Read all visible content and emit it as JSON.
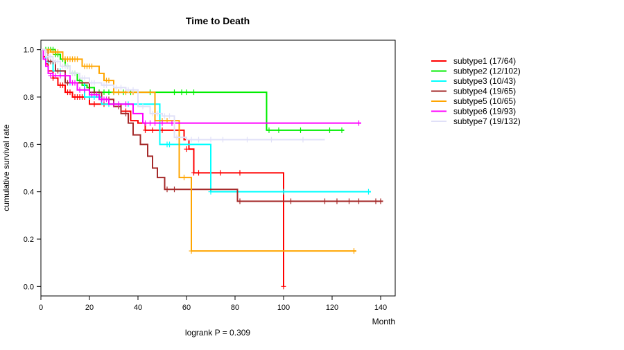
{
  "chart_data": {
    "type": "line",
    "title": "Time to Death",
    "xlabel": "Month",
    "ylabel": "cumulative survival rate",
    "footnote": "logrank P = 0.309",
    "xlim": [
      0,
      146
    ],
    "ylim": [
      -0.04,
      1.04
    ],
    "xticks": [
      0,
      20,
      40,
      60,
      80,
      100,
      120,
      140
    ],
    "yticks": [
      0.0,
      0.2,
      0.4,
      0.6,
      0.8,
      1.0
    ],
    "grid": false,
    "legend_position": "right",
    "series": [
      {
        "name": "subtype1 (17/64)",
        "color": "#ff0000",
        "steps": [
          [
            0,
            1.0
          ],
          [
            1,
            0.97
          ],
          [
            2,
            0.94
          ],
          [
            3,
            0.91
          ],
          [
            5,
            0.88
          ],
          [
            7,
            0.85
          ],
          [
            10,
            0.82
          ],
          [
            13,
            0.8
          ],
          [
            20,
            0.77
          ],
          [
            33,
            0.74
          ],
          [
            37,
            0.7
          ],
          [
            40,
            0.69
          ],
          [
            43,
            0.66
          ],
          [
            59,
            0.62
          ],
          [
            61,
            0.58
          ],
          [
            63,
            0.48
          ],
          [
            100,
            0.0
          ]
        ],
        "end": 100,
        "censored": [
          [
            5,
            0.88
          ],
          [
            8,
            0.85
          ],
          [
            9,
            0.85
          ],
          [
            11,
            0.82
          ],
          [
            12,
            0.82
          ],
          [
            14,
            0.8
          ],
          [
            15,
            0.8
          ],
          [
            16,
            0.8
          ],
          [
            17,
            0.8
          ],
          [
            18,
            0.8
          ],
          [
            22,
            0.77
          ],
          [
            26,
            0.77
          ],
          [
            30,
            0.77
          ],
          [
            35,
            0.74
          ],
          [
            43,
            0.66
          ],
          [
            46,
            0.66
          ],
          [
            50,
            0.66
          ],
          [
            60,
            0.58
          ],
          [
            63,
            0.48
          ],
          [
            65,
            0.48
          ],
          [
            74,
            0.48
          ],
          [
            82,
            0.48
          ],
          [
            100,
            0.0
          ]
        ]
      },
      {
        "name": "subtype2 (12/102)",
        "color": "#00ee00",
        "steps": [
          [
            0,
            1.0
          ],
          [
            6,
            0.98
          ],
          [
            8,
            0.96
          ],
          [
            10,
            0.93
          ],
          [
            12,
            0.9
          ],
          [
            15,
            0.87
          ],
          [
            17,
            0.85
          ],
          [
            19,
            0.84
          ],
          [
            22,
            0.82
          ],
          [
            93,
            0.66
          ]
        ],
        "end": 125,
        "censored": [
          [
            2,
            1.0
          ],
          [
            3,
            1.0
          ],
          [
            4,
            1.0
          ],
          [
            5,
            1.0
          ],
          [
            6,
            0.98
          ],
          [
            7,
            0.98
          ],
          [
            9,
            0.96
          ],
          [
            11,
            0.93
          ],
          [
            13,
            0.9
          ],
          [
            14,
            0.9
          ],
          [
            16,
            0.87
          ],
          [
            18,
            0.85
          ],
          [
            20,
            0.84
          ],
          [
            24,
            0.82
          ],
          [
            26,
            0.82
          ],
          [
            28,
            0.82
          ],
          [
            30,
            0.82
          ],
          [
            32,
            0.82
          ],
          [
            34,
            0.82
          ],
          [
            37,
            0.82
          ],
          [
            40,
            0.82
          ],
          [
            45,
            0.82
          ],
          [
            55,
            0.82
          ],
          [
            58,
            0.82
          ],
          [
            60,
            0.82
          ],
          [
            63,
            0.82
          ],
          [
            94,
            0.66
          ],
          [
            98,
            0.66
          ],
          [
            107,
            0.66
          ],
          [
            119,
            0.66
          ],
          [
            124,
            0.66
          ]
        ]
      },
      {
        "name": "subtype3 (10/43)",
        "color": "#00ffff",
        "steps": [
          [
            0,
            1.0
          ],
          [
            2,
            0.95
          ],
          [
            5,
            0.91
          ],
          [
            10,
            0.86
          ],
          [
            18,
            0.8
          ],
          [
            25,
            0.77
          ],
          [
            49,
            0.6
          ],
          [
            70,
            0.4
          ]
        ],
        "end": 136,
        "censored": [
          [
            3,
            0.95
          ],
          [
            8,
            0.91
          ],
          [
            12,
            0.86
          ],
          [
            20,
            0.8
          ],
          [
            22,
            0.8
          ],
          [
            28,
            0.77
          ],
          [
            30,
            0.77
          ],
          [
            36,
            0.77
          ],
          [
            52,
            0.6
          ],
          [
            53,
            0.6
          ],
          [
            70,
            0.4
          ],
          [
            100,
            0.4
          ],
          [
            135,
            0.4
          ]
        ]
      },
      {
        "name": "subtype4 (19/65)",
        "color": "#a52a2a",
        "steps": [
          [
            0,
            1.0
          ],
          [
            3,
            0.95
          ],
          [
            6,
            0.91
          ],
          [
            10,
            0.86
          ],
          [
            20,
            0.82
          ],
          [
            25,
            0.79
          ],
          [
            30,
            0.76
          ],
          [
            33,
            0.73
          ],
          [
            36,
            0.69
          ],
          [
            38,
            0.64
          ],
          [
            41,
            0.6
          ],
          [
            44,
            0.55
          ],
          [
            46,
            0.5
          ],
          [
            48,
            0.46
          ],
          [
            51,
            0.41
          ],
          [
            81,
            0.36
          ]
        ],
        "end": 141,
        "censored": [
          [
            4,
            0.95
          ],
          [
            5,
            0.95
          ],
          [
            7,
            0.91
          ],
          [
            11,
            0.86
          ],
          [
            13,
            0.86
          ],
          [
            22,
            0.82
          ],
          [
            28,
            0.79
          ],
          [
            32,
            0.76
          ],
          [
            35,
            0.73
          ],
          [
            52,
            0.41
          ],
          [
            55,
            0.41
          ],
          [
            82,
            0.36
          ],
          [
            103,
            0.36
          ],
          [
            117,
            0.36
          ],
          [
            122,
            0.36
          ],
          [
            127,
            0.36
          ],
          [
            131,
            0.36
          ],
          [
            138,
            0.36
          ],
          [
            140,
            0.36
          ]
        ]
      },
      {
        "name": "subtype5 (10/65)",
        "color": "#ffa500",
        "steps": [
          [
            0,
            1.0
          ],
          [
            4,
            0.99
          ],
          [
            9,
            0.96
          ],
          [
            17,
            0.93
          ],
          [
            24,
            0.9
          ],
          [
            26,
            0.87
          ],
          [
            30,
            0.82
          ],
          [
            47,
            0.7
          ],
          [
            57,
            0.46
          ],
          [
            62,
            0.15
          ]
        ],
        "end": 130,
        "censored": [
          [
            3,
            0.99
          ],
          [
            5,
            0.99
          ],
          [
            6,
            0.99
          ],
          [
            7,
            0.99
          ],
          [
            10,
            0.96
          ],
          [
            11,
            0.96
          ],
          [
            12,
            0.96
          ],
          [
            13,
            0.96
          ],
          [
            14,
            0.96
          ],
          [
            15,
            0.96
          ],
          [
            18,
            0.93
          ],
          [
            19,
            0.93
          ],
          [
            20,
            0.93
          ],
          [
            21,
            0.93
          ],
          [
            27,
            0.87
          ],
          [
            28,
            0.87
          ],
          [
            30,
            0.82
          ],
          [
            32,
            0.82
          ],
          [
            35,
            0.82
          ],
          [
            38,
            0.82
          ],
          [
            40,
            0.82
          ],
          [
            50,
            0.7
          ],
          [
            52,
            0.7
          ],
          [
            59,
            0.46
          ],
          [
            62,
            0.15
          ],
          [
            129,
            0.15
          ]
        ]
      },
      {
        "name": "subtype6 (19/93)",
        "color": "#ff00ff",
        "steps": [
          [
            0,
            1.0
          ],
          [
            1,
            0.96
          ],
          [
            2,
            0.93
          ],
          [
            3,
            0.9
          ],
          [
            5,
            0.89
          ],
          [
            12,
            0.86
          ],
          [
            15,
            0.83
          ],
          [
            20,
            0.81
          ],
          [
            24,
            0.79
          ],
          [
            28,
            0.77
          ],
          [
            38,
            0.73
          ],
          [
            42,
            0.69
          ]
        ],
        "end": 132,
        "censored": [
          [
            4,
            0.89
          ],
          [
            6,
            0.89
          ],
          [
            8,
            0.89
          ],
          [
            10,
            0.89
          ],
          [
            13,
            0.86
          ],
          [
            14,
            0.86
          ],
          [
            16,
            0.83
          ],
          [
            18,
            0.83
          ],
          [
            21,
            0.81
          ],
          [
            23,
            0.81
          ],
          [
            25,
            0.79
          ],
          [
            26,
            0.79
          ],
          [
            27,
            0.79
          ],
          [
            30,
            0.77
          ],
          [
            32,
            0.77
          ],
          [
            35,
            0.77
          ],
          [
            43,
            0.69
          ],
          [
            45,
            0.69
          ],
          [
            47,
            0.69
          ],
          [
            50,
            0.69
          ],
          [
            54,
            0.69
          ],
          [
            131,
            0.69
          ]
        ]
      },
      {
        "name": "subtype7 (19/132)",
        "color": "#e0e0f8",
        "steps": [
          [
            0,
            1.0
          ],
          [
            2,
            0.97
          ],
          [
            5,
            0.95
          ],
          [
            8,
            0.93
          ],
          [
            12,
            0.9
          ],
          [
            16,
            0.88
          ],
          [
            20,
            0.86
          ],
          [
            25,
            0.85
          ],
          [
            30,
            0.84
          ],
          [
            35,
            0.83
          ],
          [
            40,
            0.76
          ],
          [
            45,
            0.73
          ],
          [
            50,
            0.72
          ],
          [
            55,
            0.63
          ],
          [
            60,
            0.62
          ]
        ],
        "end": 117,
        "censored": [
          [
            3,
            0.97
          ],
          [
            4,
            0.97
          ],
          [
            6,
            0.95
          ],
          [
            7,
            0.95
          ],
          [
            9,
            0.93
          ],
          [
            10,
            0.93
          ],
          [
            11,
            0.93
          ],
          [
            13,
            0.9
          ],
          [
            14,
            0.9
          ],
          [
            17,
            0.88
          ],
          [
            18,
            0.88
          ],
          [
            21,
            0.86
          ],
          [
            22,
            0.86
          ],
          [
            26,
            0.85
          ],
          [
            27,
            0.85
          ],
          [
            31,
            0.84
          ],
          [
            33,
            0.84
          ],
          [
            36,
            0.83
          ],
          [
            38,
            0.83
          ],
          [
            42,
            0.76
          ],
          [
            46,
            0.73
          ],
          [
            48,
            0.73
          ],
          [
            51,
            0.72
          ],
          [
            53,
            0.72
          ],
          [
            56,
            0.63
          ],
          [
            62,
            0.62
          ],
          [
            65,
            0.62
          ],
          [
            70,
            0.62
          ],
          [
            75,
            0.62
          ],
          [
            85,
            0.62
          ],
          [
            95,
            0.62
          ],
          [
            108,
            0.62
          ]
        ]
      }
    ]
  }
}
